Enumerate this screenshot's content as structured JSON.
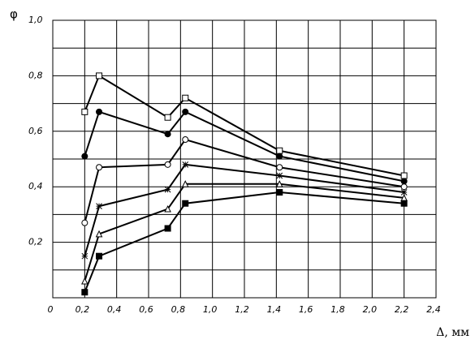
{
  "chart_data": {
    "type": "line",
    "y_label": "φ",
    "x_label": "Δ, мм",
    "x": [
      0.2,
      0.29,
      0.72,
      0.83,
      1.42,
      2.2
    ],
    "xlim": [
      0,
      2.4
    ],
    "xticks": [
      0,
      {
        "value": 0.2,
        "label": "0,2"
      },
      {
        "value": 0.4,
        "label": "0,4"
      },
      {
        "value": 0.6,
        "label": "0,6"
      },
      {
        "value": 0.8,
        "label": "0,8"
      },
      {
        "value": 1.0,
        "label": "1,0"
      },
      {
        "value": 1.2,
        "label": "1,2"
      },
      {
        "value": 1.4,
        "label": "1,4"
      },
      {
        "value": 1.6,
        "label": "1,6"
      },
      {
        "value": 1.8,
        "label": "1,8"
      },
      {
        "value": 2.0,
        "label": "2,0"
      },
      {
        "value": 2.2,
        "label": "2,2"
      },
      {
        "value": 2.4,
        "label": "2,4"
      }
    ],
    "ylim": [
      0,
      1.0
    ],
    "yticks": [
      {
        "value": 0.2,
        "label": "0,2"
      },
      {
        "value": 0.4,
        "label": "0,4"
      },
      {
        "value": 0.6,
        "label": "0,6"
      },
      {
        "value": 0.8,
        "label": "0,8"
      },
      {
        "value": 1.0,
        "label": "1,0"
      }
    ],
    "y_minor_grid": [
      0.1,
      0.3,
      0.5,
      0.7,
      0.9
    ],
    "grid": true,
    "series": [
      {
        "color": "#000000",
        "marker": "square-open",
        "values": [
          0.67,
          0.8,
          0.65,
          0.72,
          0.53,
          0.44
        ]
      },
      {
        "color": "#000000",
        "marker": "circle",
        "values": [
          0.51,
          0.67,
          0.59,
          0.67,
          0.51,
          0.42
        ]
      },
      {
        "color": "#000000",
        "marker": "circle-open",
        "values": [
          0.27,
          0.47,
          0.48,
          0.57,
          0.47,
          0.4
        ]
      },
      {
        "color": "#000000",
        "marker": "star",
        "values": [
          0.15,
          0.33,
          0.39,
          0.48,
          0.44,
          0.38
        ]
      },
      {
        "color": "#000000",
        "marker": "triangle-open",
        "values": [
          0.06,
          0.23,
          0.32,
          0.41,
          0.41,
          0.36
        ]
      },
      {
        "color": "#000000",
        "marker": "square",
        "values": [
          0.02,
          0.15,
          0.25,
          0.34,
          0.38,
          0.34
        ]
      }
    ]
  }
}
